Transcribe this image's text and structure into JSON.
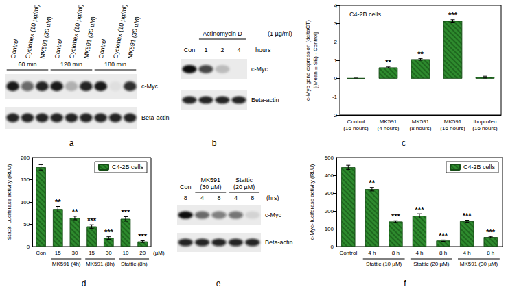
{
  "panel_letters": [
    "a",
    "b",
    "c",
    "d",
    "e",
    "f"
  ],
  "blots": [
    {
      "lanes": [
        "Control",
        "Cyclohex (10 µg/ml)",
        "MK591 (30 µM)",
        "Control",
        "Cyclohex (10 µg/ml)",
        "MK591 (30 µM)",
        "Control",
        "Cyclohex (10 µg/ml)",
        "MK591 (30 µM)"
      ],
      "groups": [
        {
          "label": "60 min",
          "lanes": [
            0,
            2
          ]
        },
        {
          "label": "120 min",
          "lanes": [
            3,
            5
          ]
        },
        {
          "label": "180 min",
          "lanes": [
            6,
            8
          ]
        }
      ],
      "rows": [
        {
          "label": "c-Myc",
          "bands": [
            0.95,
            0.6,
            0.9,
            0.95,
            0.25,
            0.9,
            0.95,
            0.05,
            0.85
          ]
        },
        {
          "label": "Beta-actin",
          "bands": [
            0.9,
            0.9,
            0.9,
            0.9,
            0.9,
            0.9,
            0.9,
            0.9,
            0.9
          ]
        }
      ]
    },
    {
      "lanes": [
        "Con",
        "1",
        "2",
        "4"
      ],
      "lane_unit": "hours",
      "groups": [
        {
          "label": "Actinomycin D",
          "lanes": [
            1,
            3
          ]
        }
      ],
      "note": "(1 µg/ml)",
      "rows": [
        {
          "label": "c-Myc",
          "bands": [
            1,
            0.75,
            0.2,
            0
          ]
        },
        {
          "label": "Beta-actin",
          "bands": [
            0.9,
            0.9,
            0.9,
            0.9
          ]
        }
      ]
    },
    {
      "lanes": [
        "8",
        "4",
        "8",
        "4",
        "8"
      ],
      "lane_unit": "(hrs)",
      "groups": [
        {
          "label": "Con",
          "lanes": [
            0,
            0
          ]
        },
        {
          "label": "MK591\n(30 µM)",
          "lanes": [
            1,
            2
          ]
        },
        {
          "label": "Stattic\n(20 µM)",
          "lanes": [
            3,
            4
          ]
        }
      ],
      "rows": [
        {
          "label": "c-Myc",
          "bands": [
            1,
            0.6,
            0.5,
            0.55,
            0.1
          ]
        },
        {
          "label": "Beta-actin",
          "bands": [
            0.9,
            0.9,
            0.9,
            0.9,
            0.9
          ]
        }
      ]
    }
  ],
  "chart_data": [
    {
      "type": "bar",
      "annotations": [
        "C4-2B cells"
      ],
      "ylabel": "c-Myc gene expression (deltaCT)\n[(Mean ± SE) - Control]",
      "categories": [
        "Control\n(16 hours)",
        "MK591\n(4 hours)",
        "MK591\n(8 hours)",
        "MK591\n(16 hours)",
        "Ibuprofen\n(16 hours)"
      ],
      "values": [
        0.02,
        0.6,
        1.05,
        3.15,
        0.08
      ],
      "errors": [
        0.04,
        0.03,
        0.05,
        0.07,
        0.05
      ],
      "significance": [
        null,
        "**",
        "**",
        "***",
        null
      ],
      "color": "#2e8b2e",
      "ylim": [
        -2,
        4
      ],
      "yticks": [
        -2,
        -1,
        0,
        1,
        2,
        3,
        4
      ],
      "grid": false
    },
    {
      "type": "bar",
      "ylabel": "Stat3- Luciferase activity (RLU)",
      "xlabel": "(µM)",
      "categories": [
        "Con",
        "15",
        "30",
        "15",
        "30",
        "10",
        "20"
      ],
      "groups": [
        {
          "label": "MK591 (4h)",
          "span": [
            1,
            2
          ]
        },
        {
          "label": "MK591 (8h)",
          "span": [
            3,
            4
          ]
        },
        {
          "label": "Stattic (8h)",
          "span": [
            5,
            6
          ]
        }
      ],
      "series": [
        {
          "name": "C4-2B cells",
          "color": "#2e8b2e",
          "values": [
            178,
            84,
            64,
            45,
            19,
            62,
            11
          ],
          "errors": [
            6,
            6,
            4,
            4,
            3,
            5,
            2
          ],
          "significance": [
            null,
            "**",
            "**",
            "***",
            "***",
            "***",
            "***"
          ]
        }
      ],
      "legend": "upper right",
      "ylim": [
        0,
        200
      ],
      "yticks": [
        0,
        50,
        100,
        150,
        200
      ],
      "grid": false
    },
    {
      "type": "bar",
      "ylabel": "c-Myc- luciferase activity (RLU)",
      "categories": [
        "Control",
        "4 h",
        "8 h",
        "4 h",
        "8 h",
        "4 h",
        "8 h"
      ],
      "groups": [
        {
          "label": "Stattic (10 µM)",
          "span": [
            1,
            2
          ]
        },
        {
          "label": "Stattic (20 µM)",
          "span": [
            3,
            4
          ]
        },
        {
          "label": "MK591 (30 µM)",
          "span": [
            5,
            6
          ]
        }
      ],
      "series": [
        {
          "name": "C4-2B cells",
          "color": "#2e8b2e",
          "values": [
            445,
            322,
            140,
            172,
            33,
            142,
            53
          ],
          "errors": [
            12,
            10,
            5,
            12,
            4,
            6,
            4
          ],
          "significance": [
            null,
            "**",
            "***",
            "***",
            "***",
            "***",
            "***"
          ]
        }
      ],
      "legend": "upper right",
      "ylim": [
        0,
        500
      ],
      "yticks": [
        0,
        100,
        200,
        300,
        400,
        500
      ],
      "grid": false
    }
  ]
}
